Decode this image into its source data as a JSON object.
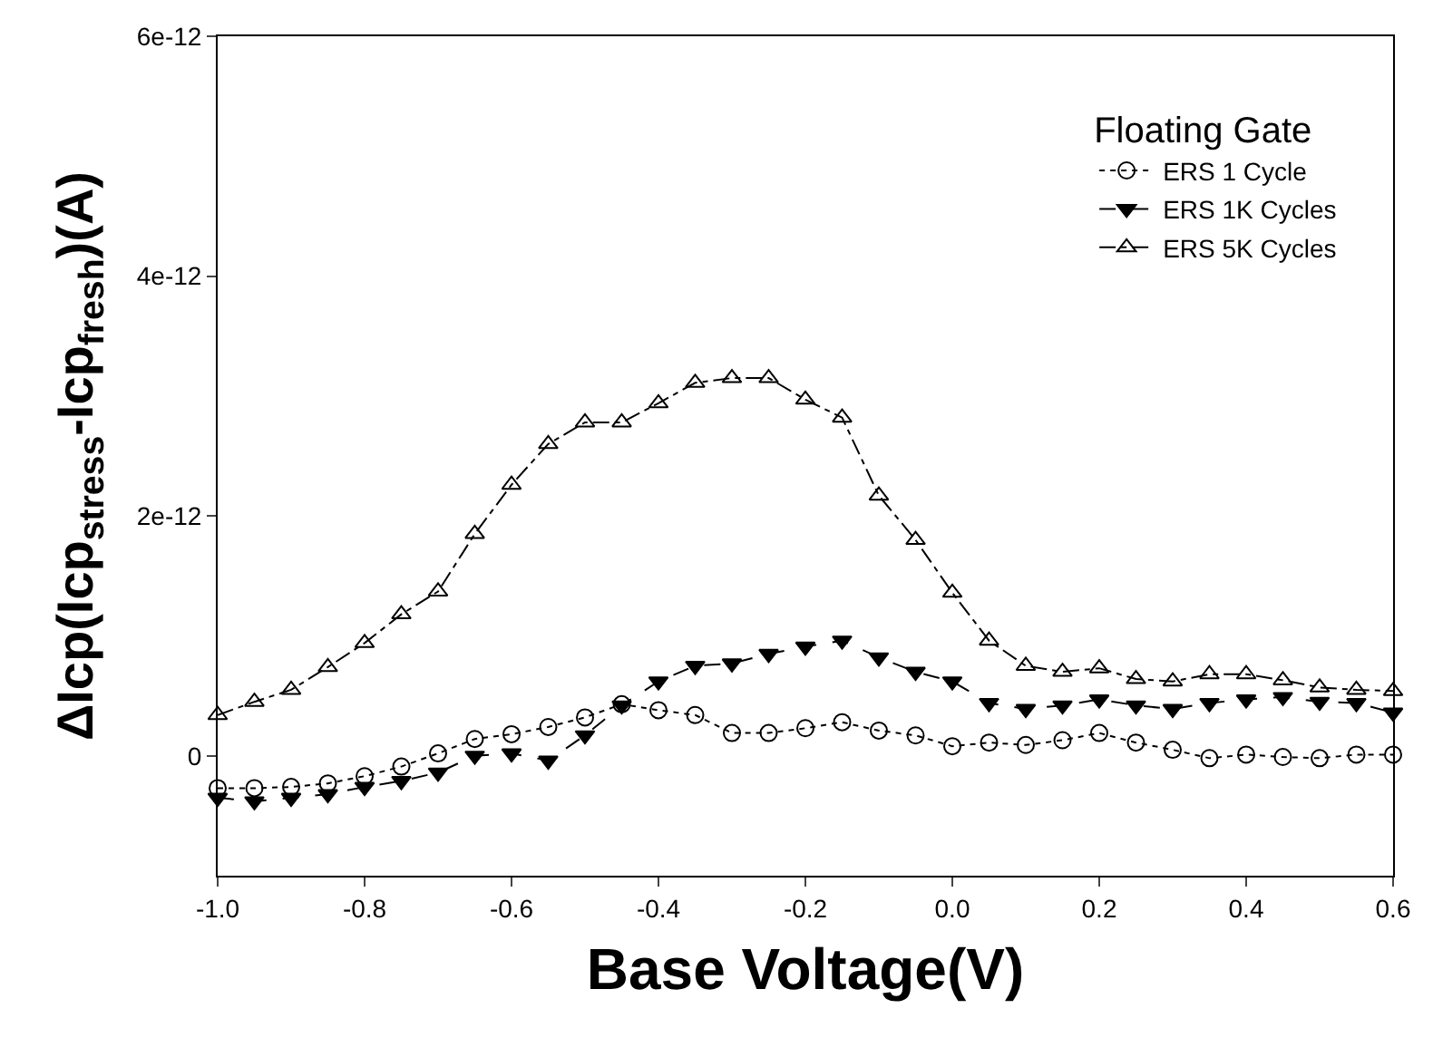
{
  "chart_data": {
    "type": "line",
    "xlabel": "Base Voltage(V)",
    "ylabel": "ΔIcp(Icp$_{stress}$-Icp$_{fresh}$)(A)",
    "legend_title": "Floating Gate",
    "legend": "top right",
    "x": [
      -1.0,
      -0.95,
      -0.9,
      -0.85,
      -0.8,
      -0.75,
      -0.7,
      -0.65,
      -0.6,
      -0.55,
      -0.5,
      -0.45,
      -0.4,
      -0.35,
      -0.3,
      -0.25,
      -0.2,
      -0.15,
      -0.1,
      -0.05,
      0.0,
      0.05,
      0.1,
      0.15,
      0.2,
      0.25,
      0.3,
      0.35,
      0.4,
      0.45,
      0.5,
      0.55,
      0.6
    ],
    "xlim": [
      -1.0,
      0.6
    ],
    "xticks": [
      {
        "value": -1.0,
        "label": "-1.0"
      },
      {
        "value": -0.8,
        "label": "-0.8"
      },
      {
        "value": -0.6,
        "label": "-0.6"
      },
      {
        "value": -0.4,
        "label": "-0.4"
      },
      {
        "value": -0.2,
        "label": "-0.2"
      },
      {
        "value": 0.0,
        "label": "0.0"
      },
      {
        "value": 0.2,
        "label": "0.2"
      },
      {
        "value": 0.4,
        "label": "0.4"
      },
      {
        "value": 0.6,
        "label": "0.6"
      }
    ],
    "ylim": [
      -1e-12,
      6e-12
    ],
    "yticks": [
      {
        "value": 0,
        "label": "0"
      },
      {
        "value": 2e-12,
        "label": "2e-12"
      },
      {
        "value": 4e-12,
        "label": "4e-12"
      },
      {
        "value": 6e-12,
        "label": "6e-12"
      }
    ],
    "series": [
      {
        "name": "ERS 1 Cycle",
        "color": "#000000",
        "marker": "circle-open",
        "line_style": "dotted",
        "values": [
          -2.7e-13,
          -2.7e-13,
          -2.6e-13,
          -2.3e-13,
          -1.7e-13,
          -9e-14,
          2e-14,
          1.4e-13,
          1.8e-13,
          2.4e-13,
          3.2e-13,
          4.3e-13,
          3.8e-13,
          3.4e-13,
          1.9e-13,
          1.9e-13,
          2.3e-13,
          2.8e-13,
          2.1e-13,
          1.7e-13,
          8e-14,
          1.1e-13,
          9e-14,
          1.3e-13,
          1.9e-13,
          1.1e-13,
          5e-14,
          -2e-14,
          1e-14,
          -1e-14,
          -2e-14,
          1e-14,
          1e-14
        ]
      },
      {
        "name": "ERS 1K Cycles",
        "color": "#000000",
        "marker": "triangle-down",
        "line_style": "dashed",
        "values": [
          -3.5e-13,
          -3.8e-13,
          -3.5e-13,
          -3.2e-13,
          -2.6e-13,
          -2.1e-13,
          -1.4e-13,
          0.0,
          2e-14,
          -4e-14,
          1.7e-13,
          4.2e-13,
          6.2e-13,
          7.5e-13,
          7.7e-13,
          8.5e-13,
          9.1e-13,
          9.6e-13,
          8.2e-13,
          7e-13,
          6.2e-13,
          4.4e-13,
          3.9e-13,
          4.2e-13,
          4.7e-13,
          4.2e-13,
          3.9e-13,
          4.4e-13,
          4.7e-13,
          4.9e-13,
          4.5e-13,
          4.4e-13,
          3.6e-13
        ]
      },
      {
        "name": "ERS 5K Cycles",
        "color": "#000000",
        "marker": "triangle-open",
        "line_style": "dashdot",
        "values": [
          3.4e-13,
          4.5e-13,
          5.5e-13,
          7.4e-13,
          9.4e-13,
          1.18e-12,
          1.37e-12,
          1.85e-12,
          2.26e-12,
          2.6e-12,
          2.78e-12,
          2.78e-12,
          2.94e-12,
          3.11e-12,
          3.15e-12,
          3.15e-12,
          2.97e-12,
          2.82e-12,
          2.17e-12,
          1.8e-12,
          1.36e-12,
          9.6e-13,
          7.5e-13,
          7e-13,
          7.3e-13,
          6.4e-13,
          6.2e-13,
          6.8e-13,
          6.8e-13,
          6.3e-13,
          5.7e-13,
          5.5e-13,
          5.4e-13
        ]
      }
    ]
  }
}
